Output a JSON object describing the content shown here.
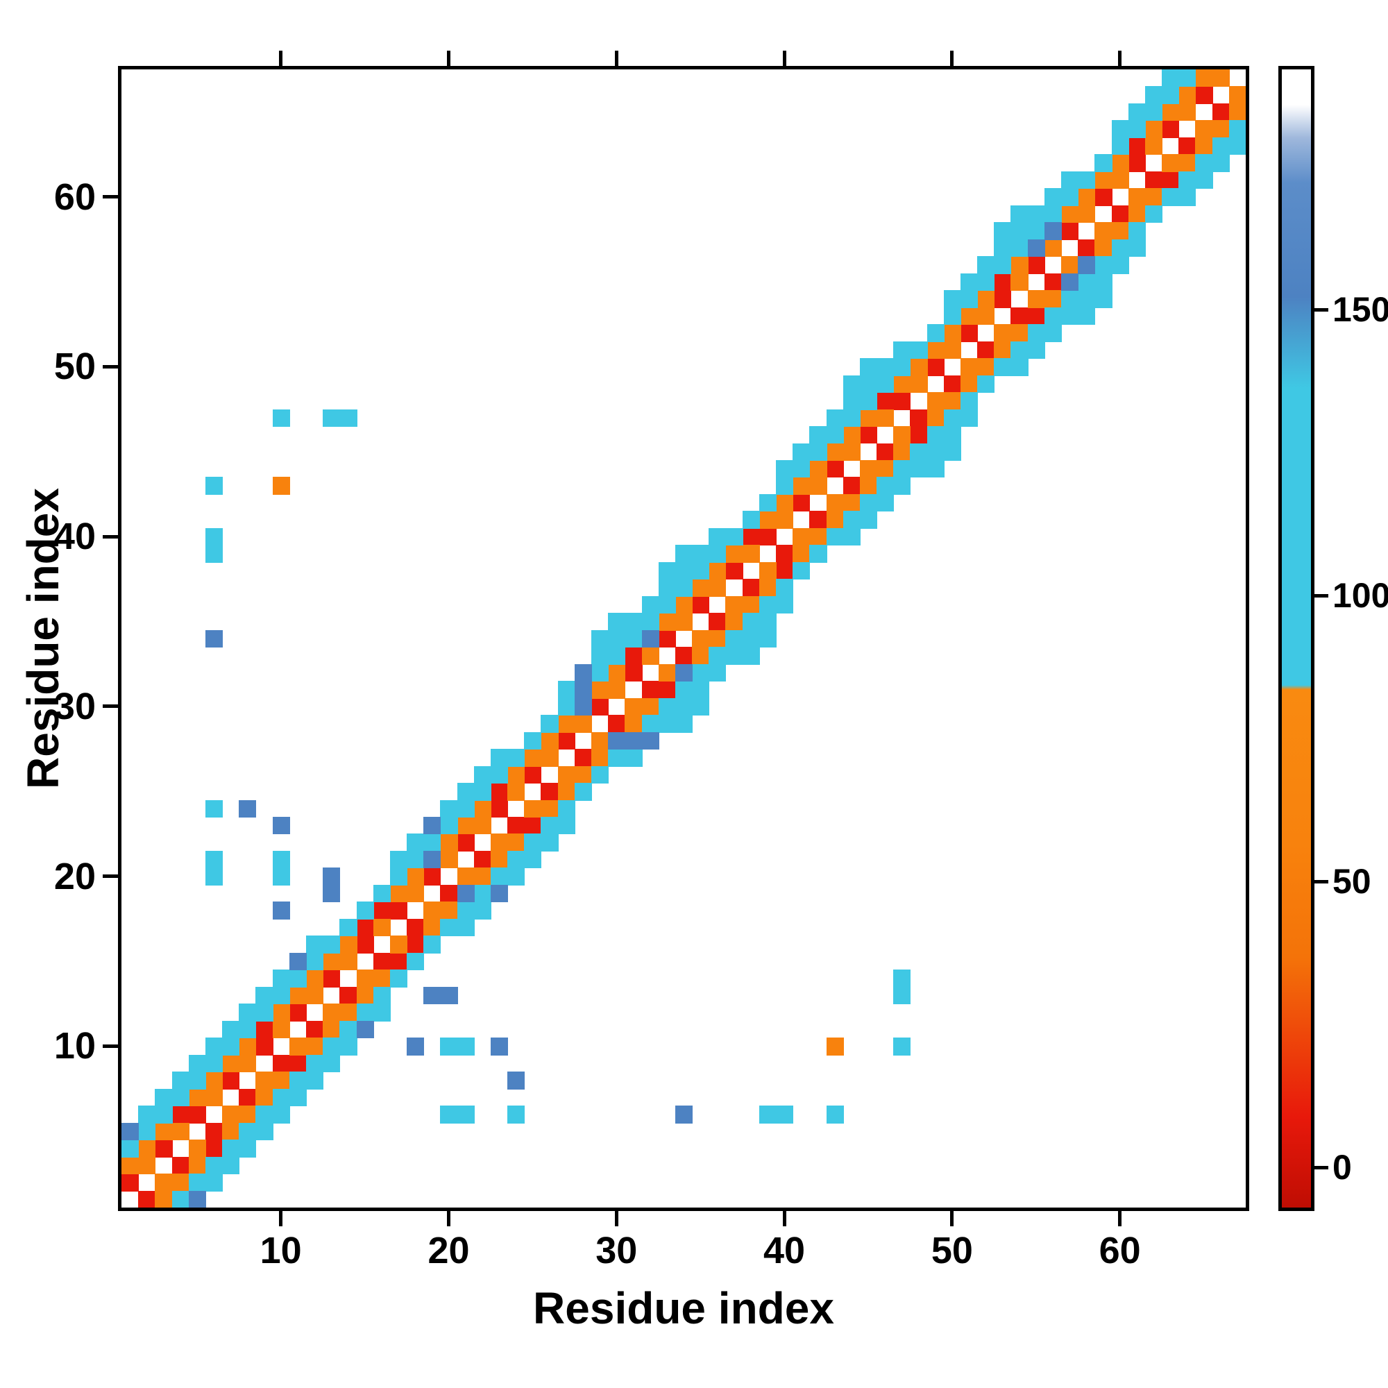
{
  "figure": {
    "background": "#ffffff",
    "frame_color": "#000000"
  },
  "chart_data": {
    "type": "heatmap",
    "title": "",
    "xlabel": "Residue index",
    "ylabel": "Residue index",
    "n_residues": 67,
    "axis_range": [
      0.5,
      67.5
    ],
    "x_ticks": [
      10,
      20,
      30,
      40,
      50,
      60
    ],
    "y_ticks": [
      10,
      20,
      30,
      40,
      50,
      60
    ],
    "symmetric": true,
    "grid": false,
    "color_classes": {
      "r": {
        "name": "red",
        "hex": "#e8190b",
        "approx_value": 10
      },
      "o": {
        "name": "orange",
        "hex": "#f8820d",
        "approx_value": 50
      },
      "c": {
        "name": "cyan",
        "hex": "#3fc8e4",
        "approx_value": 105
      },
      "b": {
        "name": "steel-blue",
        "hex": "#4d82c2",
        "approx_value": 150
      }
    },
    "colorbar": {
      "ticks": [
        0,
        50,
        100,
        150
      ],
      "domain": [
        -7,
        192
      ],
      "stops": [
        {
          "pos": 0,
          "color": "#bf0d03"
        },
        {
          "pos": 8,
          "color": "#e8190b"
        },
        {
          "pos": 22,
          "color": "#f47309"
        },
        {
          "pos": 32,
          "color": "#f8820d"
        },
        {
          "pos": 45.5,
          "color": "#f98a10"
        },
        {
          "pos": 45.9,
          "color": "#3fc8e4"
        },
        {
          "pos": 72,
          "color": "#3fc8e4"
        },
        {
          "pos": 80,
          "color": "#4d82c2"
        },
        {
          "pos": 90,
          "color": "#5c8dc9"
        },
        {
          "pos": 94,
          "color": "#9fb8dc"
        },
        {
          "pos": 96.9,
          "color": "#ffffff"
        },
        {
          "pos": 100,
          "color": "#ffffff"
        }
      ]
    },
    "cells": {
      "r": [
        [
          1,
          2
        ],
        [
          3,
          4
        ],
        [
          5,
          6
        ],
        [
          7,
          8
        ],
        [
          9,
          10
        ],
        [
          11,
          12
        ],
        [
          13,
          14
        ],
        [
          15,
          16
        ],
        [
          17,
          18
        ],
        [
          19,
          20
        ],
        [
          21,
          22
        ],
        [
          23,
          24
        ],
        [
          25,
          26
        ],
        [
          27,
          28
        ],
        [
          29,
          30
        ],
        [
          31,
          32
        ],
        [
          33,
          34
        ],
        [
          35,
          36
        ],
        [
          37,
          38
        ],
        [
          39,
          40
        ],
        [
          41,
          42
        ],
        [
          43,
          44
        ],
        [
          45,
          46
        ],
        [
          47,
          48
        ],
        [
          49,
          50
        ],
        [
          51,
          52
        ],
        [
          53,
          54
        ],
        [
          55,
          56
        ],
        [
          57,
          58
        ],
        [
          59,
          60
        ],
        [
          61,
          62
        ],
        [
          63,
          64
        ],
        [
          65,
          66
        ],
        [
          4,
          6
        ],
        [
          9,
          11
        ],
        [
          15,
          17
        ],
        [
          16,
          18
        ],
        [
          23,
          25
        ],
        [
          31,
          33
        ],
        [
          38,
          40
        ],
        [
          46,
          48
        ],
        [
          53,
          55
        ],
        [
          61,
          63
        ]
      ],
      "o": [
        [
          2,
          3
        ],
        [
          4,
          5
        ],
        [
          6,
          7
        ],
        [
          8,
          9
        ],
        [
          10,
          11
        ],
        [
          12,
          13
        ],
        [
          14,
          15
        ],
        [
          16,
          17
        ],
        [
          18,
          19
        ],
        [
          20,
          21
        ],
        [
          22,
          23
        ],
        [
          24,
          25
        ],
        [
          26,
          27
        ],
        [
          28,
          29
        ],
        [
          30,
          31
        ],
        [
          32,
          33
        ],
        [
          34,
          35
        ],
        [
          36,
          37
        ],
        [
          38,
          39
        ],
        [
          40,
          41
        ],
        [
          42,
          43
        ],
        [
          44,
          45
        ],
        [
          46,
          47
        ],
        [
          48,
          49
        ],
        [
          50,
          51
        ],
        [
          52,
          53
        ],
        [
          54,
          55
        ],
        [
          56,
          57
        ],
        [
          58,
          59
        ],
        [
          60,
          61
        ],
        [
          62,
          63
        ],
        [
          64,
          65
        ],
        [
          66,
          67
        ],
        [
          1,
          3
        ],
        [
          2,
          4
        ],
        [
          3,
          5
        ],
        [
          5,
          7
        ],
        [
          6,
          8
        ],
        [
          7,
          9
        ],
        [
          8,
          10
        ],
        [
          10,
          12
        ],
        [
          11,
          13
        ],
        [
          12,
          14
        ],
        [
          13,
          15
        ],
        [
          14,
          16
        ],
        [
          17,
          19
        ],
        [
          18,
          20
        ],
        [
          20,
          22
        ],
        [
          21,
          23
        ],
        [
          22,
          24
        ],
        [
          24,
          26
        ],
        [
          25,
          27
        ],
        [
          26,
          28
        ],
        [
          27,
          29
        ],
        [
          29,
          31
        ],
        [
          30,
          32
        ],
        [
          33,
          35
        ],
        [
          34,
          36
        ],
        [
          35,
          37
        ],
        [
          36,
          38
        ],
        [
          37,
          39
        ],
        [
          39,
          41
        ],
        [
          40,
          42
        ],
        [
          41,
          43
        ],
        [
          42,
          44
        ],
        [
          43,
          45
        ],
        [
          44,
          46
        ],
        [
          45,
          47
        ],
        [
          47,
          49
        ],
        [
          48,
          50
        ],
        [
          49,
          51
        ],
        [
          50,
          52
        ],
        [
          51,
          53
        ],
        [
          52,
          54
        ],
        [
          54,
          56
        ],
        [
          57,
          59
        ],
        [
          58,
          60
        ],
        [
          59,
          61
        ],
        [
          60,
          62
        ],
        [
          62,
          64
        ],
        [
          63,
          65
        ],
        [
          64,
          66
        ],
        [
          65,
          67
        ],
        [
          10,
          43
        ]
      ],
      "c": [
        [
          1,
          4
        ],
        [
          2,
          5
        ],
        [
          3,
          6
        ],
        [
          4,
          7
        ],
        [
          5,
          8
        ],
        [
          6,
          9
        ],
        [
          7,
          10
        ],
        [
          8,
          11
        ],
        [
          9,
          12
        ],
        [
          10,
          13
        ],
        [
          11,
          14
        ],
        [
          12,
          15
        ],
        [
          13,
          16
        ],
        [
          14,
          17
        ],
        [
          15,
          18
        ],
        [
          16,
          19
        ],
        [
          17,
          20
        ],
        [
          18,
          21
        ],
        [
          19,
          22
        ],
        [
          20,
          23
        ],
        [
          21,
          24
        ],
        [
          22,
          25
        ],
        [
          23,
          26
        ],
        [
          24,
          27
        ],
        [
          25,
          28
        ],
        [
          26,
          29
        ],
        [
          27,
          30
        ],
        [
          29,
          32
        ],
        [
          30,
          33
        ],
        [
          31,
          34
        ],
        [
          32,
          35
        ],
        [
          33,
          36
        ],
        [
          34,
          37
        ],
        [
          35,
          38
        ],
        [
          36,
          39
        ],
        [
          37,
          40
        ],
        [
          38,
          41
        ],
        [
          39,
          42
        ],
        [
          40,
          43
        ],
        [
          41,
          44
        ],
        [
          42,
          45
        ],
        [
          43,
          46
        ],
        [
          44,
          47
        ],
        [
          45,
          48
        ],
        [
          46,
          49
        ],
        [
          47,
          50
        ],
        [
          48,
          51
        ],
        [
          49,
          52
        ],
        [
          50,
          53
        ],
        [
          51,
          54
        ],
        [
          52,
          55
        ],
        [
          53,
          56
        ],
        [
          54,
          57
        ],
        [
          55,
          58
        ],
        [
          56,
          59
        ],
        [
          57,
          60
        ],
        [
          58,
          61
        ],
        [
          59,
          62
        ],
        [
          60,
          63
        ],
        [
          61,
          64
        ],
        [
          62,
          65
        ],
        [
          63,
          66
        ],
        [
          64,
          67
        ],
        [
          2,
          6
        ],
        [
          3,
          7
        ],
        [
          4,
          8
        ],
        [
          5,
          9
        ],
        [
          6,
          10
        ],
        [
          7,
          11
        ],
        [
          8,
          12
        ],
        [
          9,
          13
        ],
        [
          10,
          14
        ],
        [
          12,
          16
        ],
        [
          17,
          21
        ],
        [
          18,
          22
        ],
        [
          20,
          24
        ],
        [
          21,
          25
        ],
        [
          22,
          26
        ],
        [
          23,
          27
        ],
        [
          27,
          31
        ],
        [
          29,
          33
        ],
        [
          30,
          34
        ],
        [
          31,
          35
        ],
        [
          32,
          36
        ],
        [
          33,
          37
        ],
        [
          34,
          38
        ],
        [
          35,
          39
        ],
        [
          36,
          40
        ],
        [
          40,
          44
        ],
        [
          41,
          45
        ],
        [
          42,
          46
        ],
        [
          43,
          47
        ],
        [
          44,
          48
        ],
        [
          45,
          49
        ],
        [
          46,
          50
        ],
        [
          47,
          51
        ],
        [
          50,
          54
        ],
        [
          51,
          55
        ],
        [
          52,
          56
        ],
        [
          53,
          57
        ],
        [
          54,
          58
        ],
        [
          55,
          59
        ],
        [
          56,
          60
        ],
        [
          57,
          61
        ],
        [
          60,
          64
        ],
        [
          61,
          65
        ],
        [
          62,
          66
        ],
        [
          63,
          67
        ],
        [
          29,
          34
        ],
        [
          30,
          35
        ],
        [
          33,
          38
        ],
        [
          34,
          39
        ],
        [
          44,
          49
        ],
        [
          45,
          50
        ],
        [
          53,
          58
        ],
        [
          54,
          59
        ],
        [
          6,
          20
        ],
        [
          6,
          21
        ],
        [
          6,
          24
        ],
        [
          6,
          39
        ],
        [
          6,
          40
        ],
        [
          6,
          43
        ],
        [
          10,
          20
        ],
        [
          10,
          21
        ],
        [
          10,
          47
        ],
        [
          13,
          47
        ],
        [
          14,
          47
        ]
      ],
      "b": [
        [
          19,
          23
        ],
        [
          28,
          32
        ],
        [
          1,
          5
        ],
        [
          6,
          34
        ],
        [
          8,
          24
        ],
        [
          10,
          18
        ],
        [
          10,
          23
        ],
        [
          13,
          19
        ],
        [
          13,
          20
        ],
        [
          11,
          15
        ],
        [
          19,
          21
        ],
        [
          28,
          30
        ],
        [
          28,
          31
        ],
        [
          32,
          34
        ],
        [
          55,
          57
        ],
        [
          56,
          58
        ]
      ]
    }
  }
}
